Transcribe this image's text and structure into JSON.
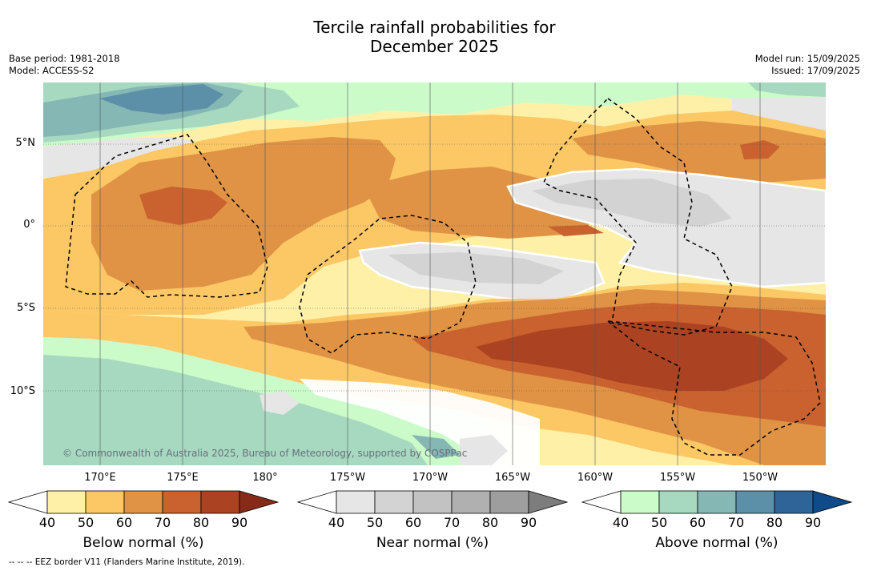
{
  "title_line1": "Tercile rainfall probabilities for",
  "title_line2": "December 2025",
  "base_period": "Base period: 1981-2018",
  "model": "Model: ACCESS-S2",
  "model_run": "Model run: 15/09/2025",
  "issued": "Issued: 17/09/2025",
  "copyright": "© Commonwealth of Australia 2025, Bureau of Meteorology, supported by COSPPac",
  "lat_labels": [
    "5°N",
    "0°",
    "5°S",
    "10°S"
  ],
  "lon_labels": [
    "170°E",
    "175°E",
    "180°",
    "175°W",
    "170°W",
    "165°W",
    "160°W",
    "155°W",
    "150°W"
  ],
  "colorbars": [
    {
      "title": "Below normal (%)",
      "ticks": [
        "40",
        "50",
        "60",
        "70",
        "80",
        "90"
      ],
      "colors": [
        "#ffffff",
        "#fff0a8",
        "#fcc865",
        "#e09345",
        "#c9622f",
        "#ab4322",
        "#882a18"
      ]
    },
    {
      "title": "Near normal (%)",
      "ticks": [
        "40",
        "50",
        "60",
        "70",
        "80",
        "90"
      ],
      "colors": [
        "#ffffff",
        "#e6e6e6",
        "#d3d3d3",
        "#c2c2c2",
        "#b0b0b0",
        "#9e9e9e",
        "#7d7d7d"
      ]
    },
    {
      "title": "Above normal (%)",
      "ticks": [
        "40",
        "50",
        "60",
        "70",
        "80",
        "90"
      ],
      "colors": [
        "#ffffff",
        "#ccfbca",
        "#a6d9c0",
        "#85b7b4",
        "#5c90a8",
        "#2f6499",
        "#0f4a8a"
      ]
    }
  ],
  "footnote": "-- -- -- EEZ border V11 (Flanders Marine Institute, 2019)."
}
